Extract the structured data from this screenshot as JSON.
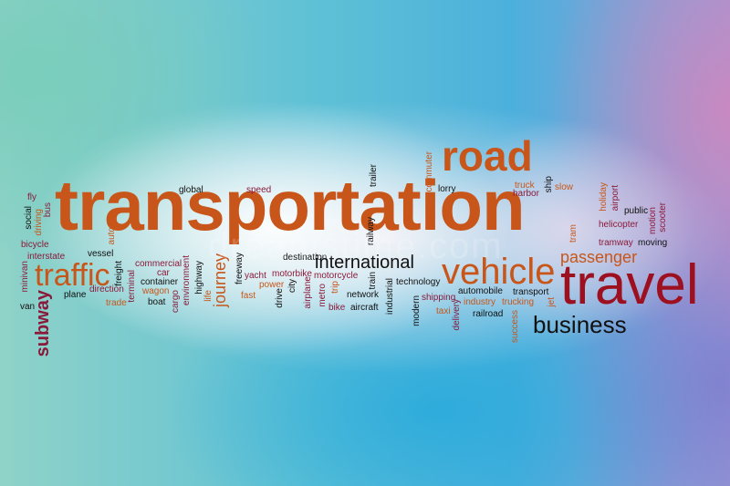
{
  "words": {
    "transportation": "transportation",
    "road": "road",
    "travel": "travel",
    "vehicle": "vehicle",
    "business": "business",
    "traffic": "traffic",
    "international": "international",
    "passenger": "passenger",
    "subway": "subway",
    "journey": "journey",
    "global": "global",
    "speed": "speed",
    "destination": "destination",
    "trailer": "trailer",
    "commuter": "commuter",
    "lorry": "lorry",
    "truck": "truck",
    "harbor": "harbor",
    "ship": "ship",
    "slow": "slow",
    "holiday": "holiday",
    "airport": "airport",
    "public": "public",
    "motion": "motion",
    "scooter": "scooter",
    "helicopter": "helicopter",
    "tram": "tram",
    "tramway": "tramway",
    "moving": "moving",
    "fly": "fly",
    "social": "social",
    "bus": "bus",
    "driving": "driving",
    "bicycle": "bicycle",
    "interstate": "interstate",
    "minivan": "minivan",
    "van": "van",
    "auto": "auto",
    "vessel": "vessel",
    "freight": "freight",
    "plane": "plane",
    "direction": "direction",
    "terminal": "terminal",
    "trade": "trade",
    "commercial": "commercial",
    "car": "car",
    "container": "container",
    "wagon": "wagon",
    "boat": "boat",
    "cargo": "cargo",
    "environment": "environment",
    "highway": "highway",
    "life": "life",
    "freeway": "freeway",
    "yacht": "yacht",
    "fast": "fast",
    "motorbike": "motorbike",
    "power": "power",
    "drive": "drive",
    "city": "city",
    "airplane": "airplane",
    "metro": "metro",
    "motorcycle": "motorcycle",
    "trip": "trip",
    "bike": "bike",
    "aircraft": "aircraft",
    "network": "network",
    "train": "train",
    "railway": "railway",
    "industrial": "industrial",
    "modern": "modern",
    "technology": "technology",
    "shipping": "shipping",
    "taxi": "taxi",
    "delivery": "delivery",
    "automobile": "automobile",
    "industry": "industry",
    "trucking": "trucking",
    "railroad": "railroad",
    "transport": "transport",
    "success": "success",
    "jet": "jet"
  },
  "watermark": "dreamstime.com",
  "colors": {
    "orange": "#c8561a",
    "dark_red": "#9c1020",
    "burgundy": "#8a1a3a",
    "black": "#111111",
    "brown": "#6a2c10"
  }
}
